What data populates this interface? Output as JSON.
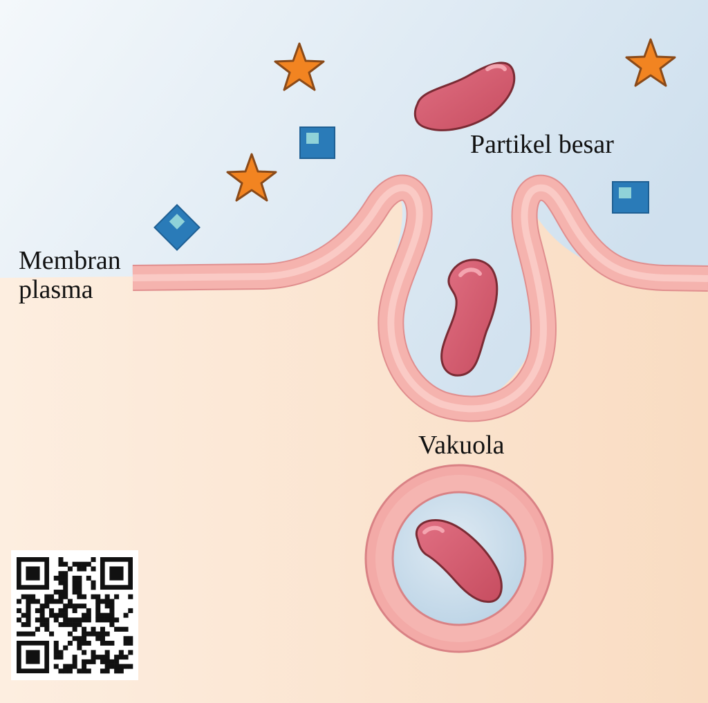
{
  "labels": {
    "particle": "Partikel besar",
    "membrane_line1": "Membran",
    "membrane_line2": "plasma",
    "vacuole": "Vakuola"
  },
  "icons": {
    "star": "star-icon",
    "solute": "square-molecule-icon",
    "particle": "bean-particle-icon",
    "qr": "qr-code-icon"
  },
  "colors": {
    "outside_bg": "#dde9f3",
    "cytoplasm_bg": "#fbe5d1",
    "membrane_fill": "#f6b6b1",
    "membrane_edge": "#e48e8c",
    "particle_fill": "#d35c6e",
    "particle_edge": "#7a2b34",
    "star_fill": "#f28421",
    "star_edge": "#8a4a19",
    "square_fill": "#2a7bb8",
    "vacuole_lumen": "#c6dcea"
  }
}
